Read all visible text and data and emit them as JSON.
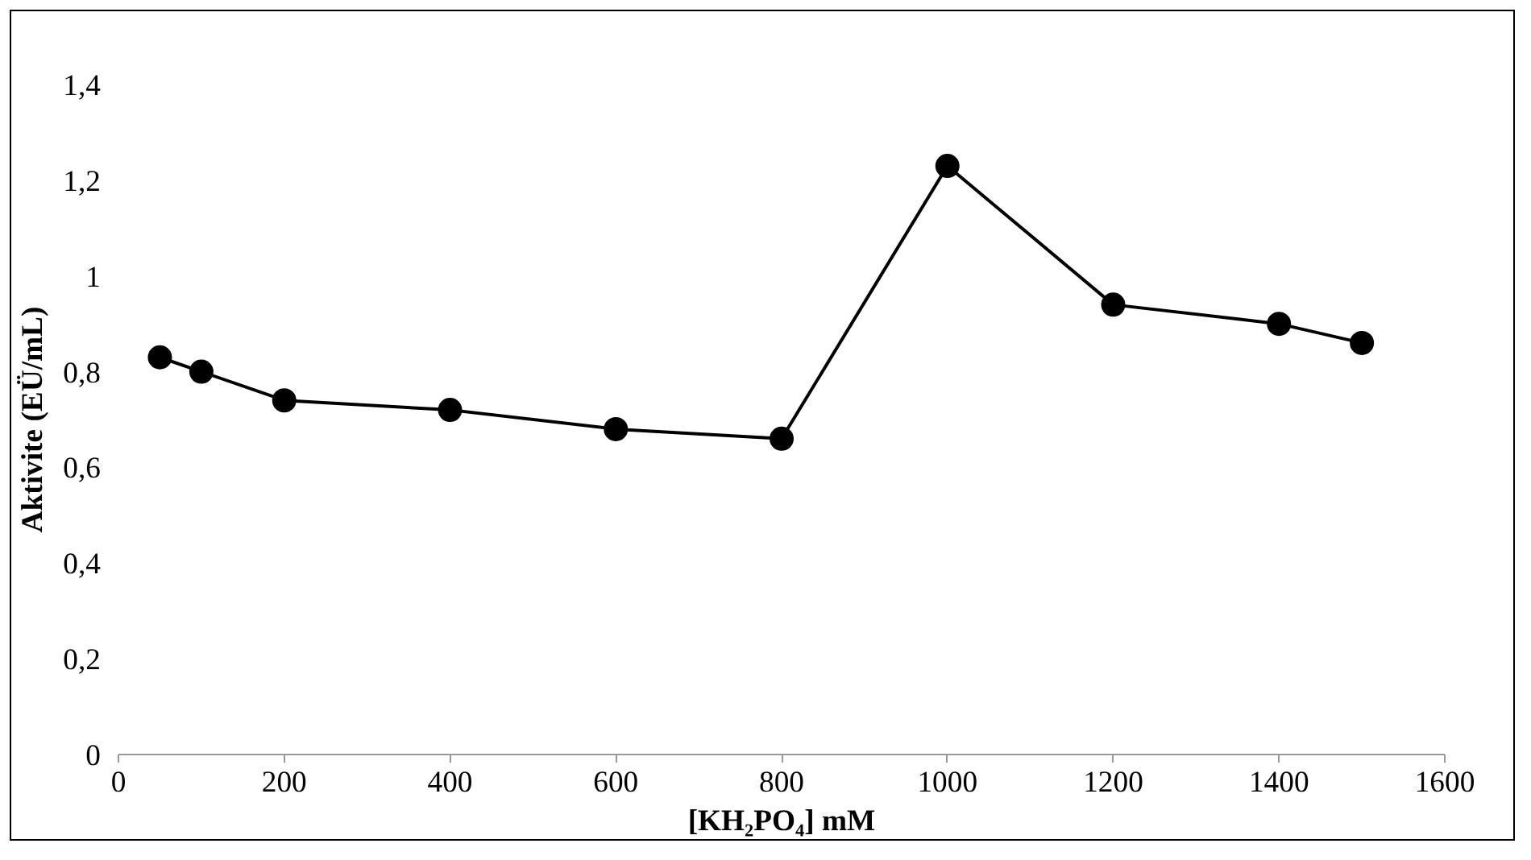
{
  "chart_data": {
    "type": "line",
    "xlabel": "[KH₂PO₄] mM",
    "ylabel": "Aktivite (EÜ/mL)",
    "x": [
      50,
      100,
      200,
      400,
      600,
      800,
      1000,
      1200,
      1400,
      1500
    ],
    "series": [
      {
        "color": "#000000",
        "values": [
          0.83,
          0.8,
          0.74,
          0.72,
          0.68,
          0.66,
          1.23,
          0.94,
          0.9,
          0.86
        ]
      }
    ],
    "xlim": [
      0,
      1600
    ],
    "xticks": [
      0,
      200,
      400,
      600,
      800,
      1000,
      1200,
      1400,
      1600
    ],
    "ylim": [
      0,
      1.4
    ],
    "yticks": [
      0,
      {
        "value": 0.2,
        "label": "0,2"
      },
      {
        "value": 0.4,
        "label": "0,4"
      },
      {
        "value": 0.6,
        "label": "0,6"
      },
      {
        "value": 0.8,
        "label": "0,8"
      },
      1,
      {
        "value": 1.2,
        "label": "1,2"
      },
      {
        "value": 1.4,
        "label": "1,4"
      }
    ],
    "marker": "circle",
    "line_style": "solid"
  }
}
